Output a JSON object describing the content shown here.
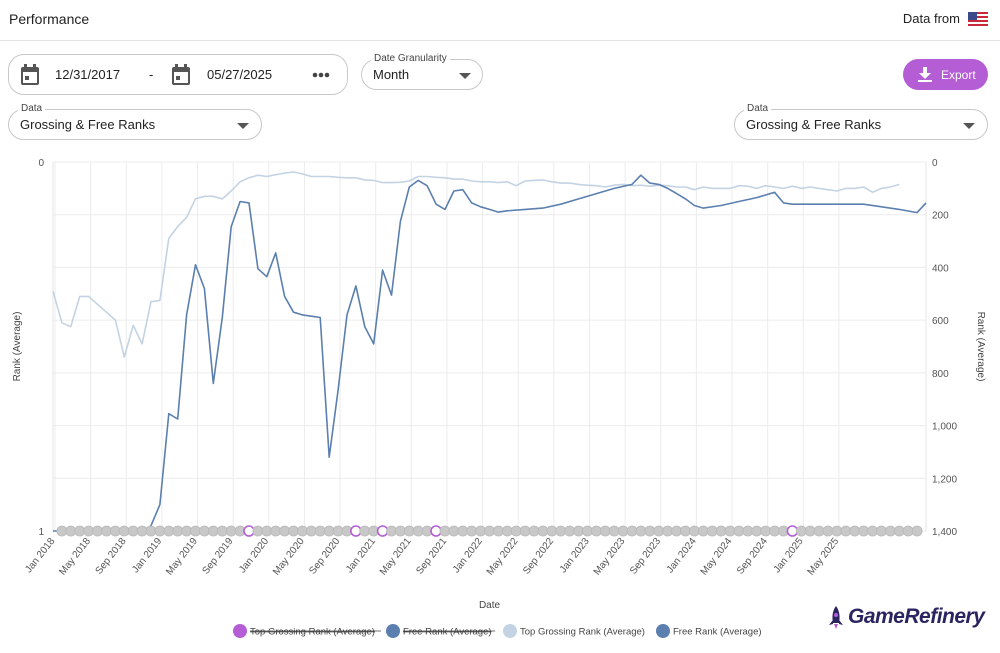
{
  "header": {
    "title": "Performance",
    "data_from": "Data from",
    "flag_icon": "us-flag-icon"
  },
  "date_range": {
    "start": "12/31/2017",
    "separator": "-",
    "end": "05/27/2025",
    "more_icon": "more-horizontal-icon"
  },
  "granularity": {
    "label": "Date Granularity",
    "value": "Month"
  },
  "export": {
    "label": "Export",
    "icon": "download-icon"
  },
  "data_select_left": {
    "label": "Data",
    "value": "Grossing & Free Ranks"
  },
  "data_select_right": {
    "label": "Data",
    "value": "Grossing & Free Ranks"
  },
  "brand": {
    "name": "GameRefinery",
    "color": "#2a2560"
  },
  "colors": {
    "accent": "#b55dd4",
    "free": "#5b7fae",
    "grossing": "#c4d3e3",
    "marker": "#c8c8c8"
  },
  "chart_data": {
    "type": "line",
    "xlabel": "Date",
    "ylabel_left": "Rank (Average)",
    "ylabel_right": "Rank (Average)",
    "x_ticks": [
      "Jan 2018",
      "May 2018",
      "Sep 2018",
      "Jan 2019",
      "May 2019",
      "Sep 2019",
      "Jan 2020",
      "May 2020",
      "Sep 2020",
      "Jan 2021",
      "May 2021",
      "Sep 2021",
      "Jan 2022",
      "May 2022",
      "Sep 2022",
      "Jan 2023",
      "May 2023",
      "Sep 2023",
      "Jan 2024",
      "May 2024",
      "Sep 2024",
      "Jan 2025",
      "May 2025"
    ],
    "y_left": {
      "top_label": "0",
      "bottom_label": "1"
    },
    "y_right": {
      "ticks": [
        0,
        200,
        400,
        600,
        800,
        1000,
        1200,
        1400
      ],
      "tick_labels": [
        "0",
        "200",
        "400",
        "600",
        "800",
        "1,000",
        "1,200",
        "1,400"
      ],
      "reversed": true
    },
    "grid": true,
    "legend_position": "bottom",
    "legend": [
      {
        "name": "Top Grossing Rank (Average)",
        "color": "#b55dd4",
        "struck": true
      },
      {
        "name": "Free Rank (Average)",
        "color": "#5b7fae",
        "struck": true
      },
      {
        "name": "Top Grossing Rank (Average)",
        "color": "#c4d3e3",
        "struck": false
      },
      {
        "name": "Free Rank (Average)",
        "color": "#5b7fae",
        "struck": false
      }
    ],
    "series": [
      {
        "name": "Top Grossing Rank (Average)",
        "color": "#c4d3e3",
        "points": [
          [
            0,
            490
          ],
          [
            1,
            610
          ],
          [
            2,
            625
          ],
          [
            3,
            510
          ],
          [
            4,
            510
          ],
          [
            5,
            540
          ],
          [
            6,
            570
          ],
          [
            7,
            600
          ],
          [
            8,
            740
          ],
          [
            9,
            620
          ],
          [
            10,
            690
          ],
          [
            11,
            530
          ],
          [
            12,
            525
          ],
          [
            13,
            290
          ],
          [
            14,
            245
          ],
          [
            15,
            210
          ],
          [
            16,
            140
          ],
          [
            17,
            130
          ],
          [
            18,
            130
          ],
          [
            19,
            140
          ],
          [
            20,
            110
          ],
          [
            21,
            75
          ],
          [
            22,
            60
          ],
          [
            23,
            50
          ],
          [
            24,
            55
          ],
          [
            25,
            48
          ],
          [
            26,
            42
          ],
          [
            27,
            38
          ],
          [
            28,
            45
          ],
          [
            29,
            55
          ],
          [
            30,
            55
          ],
          [
            31,
            55
          ],
          [
            32,
            58
          ],
          [
            33,
            60
          ],
          [
            34,
            60
          ],
          [
            35,
            68
          ],
          [
            36,
            70
          ],
          [
            37,
            78
          ],
          [
            38,
            78
          ],
          [
            39,
            77
          ],
          [
            40,
            72
          ],
          [
            41,
            55
          ],
          [
            42,
            55
          ],
          [
            43,
            58
          ],
          [
            44,
            60
          ],
          [
            45,
            65
          ],
          [
            46,
            65
          ],
          [
            47,
            72
          ],
          [
            48,
            75
          ],
          [
            49,
            75
          ],
          [
            50,
            78
          ],
          [
            51,
            75
          ],
          [
            52,
            90
          ],
          [
            53,
            72
          ],
          [
            54,
            70
          ],
          [
            55,
            68
          ],
          [
            56,
            75
          ],
          [
            57,
            80
          ],
          [
            58,
            80
          ],
          [
            59,
            85
          ],
          [
            60,
            88
          ],
          [
            61,
            90
          ],
          [
            62,
            95
          ],
          [
            63,
            88
          ],
          [
            64,
            85
          ],
          [
            65,
            90
          ],
          [
            66,
            88
          ],
          [
            67,
            92
          ],
          [
            68,
            88
          ],
          [
            69,
            90
          ],
          [
            70,
            95
          ],
          [
            71,
            95
          ],
          [
            72,
            105
          ],
          [
            73,
            95
          ],
          [
            74,
            100
          ],
          [
            75,
            100
          ],
          [
            76,
            100
          ],
          [
            77,
            90
          ],
          [
            78,
            92
          ],
          [
            79,
            100
          ],
          [
            80,
            90
          ],
          [
            81,
            95
          ],
          [
            82,
            100
          ],
          [
            83,
            92
          ],
          [
            84,
            100
          ],
          [
            85,
            95
          ],
          [
            86,
            100
          ],
          [
            87,
            105
          ],
          [
            88,
            110
          ],
          [
            89,
            100
          ],
          [
            90,
            100
          ],
          [
            91,
            95
          ],
          [
            92,
            115
          ],
          [
            93,
            100
          ],
          [
            94,
            95
          ],
          [
            95,
            85
          ]
        ]
      },
      {
        "name": "Free Rank (Average)",
        "color": "#5b7fae",
        "points": [
          [
            0,
            1400
          ],
          [
            1,
            1400
          ],
          [
            2,
            1400
          ],
          [
            3,
            1400
          ],
          [
            4,
            1400
          ],
          [
            5,
            1400
          ],
          [
            6,
            1400
          ],
          [
            7,
            1400
          ],
          [
            8,
            1400
          ],
          [
            9,
            1400
          ],
          [
            10,
            1400
          ],
          [
            11,
            1380
          ],
          [
            12,
            1300
          ],
          [
            13,
            955
          ],
          [
            14,
            975
          ],
          [
            15,
            580
          ],
          [
            16,
            390
          ],
          [
            17,
            480
          ],
          [
            18,
            840
          ],
          [
            19,
            590
          ],
          [
            20,
            245
          ],
          [
            21,
            150
          ],
          [
            22,
            155
          ],
          [
            23,
            405
          ],
          [
            24,
            435
          ],
          [
            25,
            345
          ],
          [
            26,
            510
          ],
          [
            27,
            570
          ],
          [
            28,
            580
          ],
          [
            29,
            585
          ],
          [
            30,
            590
          ],
          [
            31,
            1120
          ],
          [
            32,
            865
          ],
          [
            33,
            580
          ],
          [
            34,
            470
          ],
          [
            35,
            625
          ],
          [
            36,
            690
          ],
          [
            37,
            410
          ],
          [
            38,
            505
          ],
          [
            39,
            225
          ],
          [
            40,
            95
          ],
          [
            41,
            70
          ],
          [
            42,
            90
          ],
          [
            43,
            160
          ],
          [
            44,
            180
          ],
          [
            45,
            110
          ],
          [
            46,
            105
          ],
          [
            47,
            155
          ],
          [
            48,
            170
          ],
          [
            49,
            180
          ],
          [
            50,
            190
          ],
          [
            51,
            185
          ],
          [
            53,
            180
          ],
          [
            55,
            175
          ],
          [
            57,
            160
          ],
          [
            59,
            140
          ],
          [
            61,
            120
          ],
          [
            63,
            100
          ],
          [
            65,
            85
          ],
          [
            66,
            50
          ],
          [
            67,
            80
          ],
          [
            68,
            85
          ],
          [
            69,
            100
          ],
          [
            70,
            120
          ],
          [
            71,
            140
          ],
          [
            72,
            165
          ],
          [
            73,
            175
          ],
          [
            75,
            165
          ],
          [
            77,
            150
          ],
          [
            79,
            135
          ],
          [
            81,
            115
          ],
          [
            82,
            155
          ],
          [
            83,
            160
          ],
          [
            85,
            160
          ],
          [
            88,
            160
          ],
          [
            91,
            160
          ],
          [
            93,
            170
          ],
          [
            95,
            180
          ],
          [
            97,
            192
          ],
          [
            98,
            155
          ]
        ]
      }
    ],
    "bottom_markers": {
      "highlighted_at": [
        22,
        34,
        37,
        43,
        83
      ]
    }
  }
}
